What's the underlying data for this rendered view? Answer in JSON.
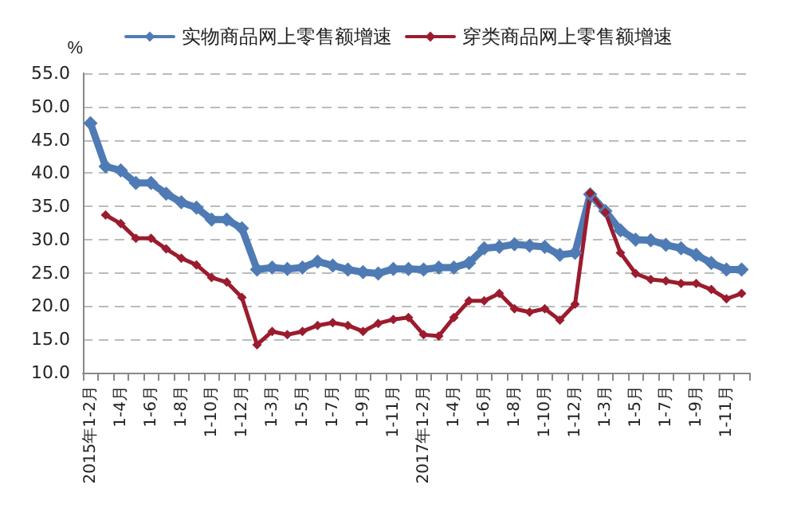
{
  "chart_data": {
    "type": "line",
    "ylabel": "%",
    "categories": [
      "2015年1-2月",
      null,
      "1-4月",
      null,
      "1-6月",
      null,
      "1-8月",
      null,
      "1-10月",
      null,
      "1-12月",
      null,
      "1-3月",
      null,
      "1-5月",
      null,
      "1-7月",
      null,
      "1-9月",
      null,
      "1-11月",
      null,
      "2017年1-2月",
      null,
      "1-4月",
      null,
      "1-6月",
      null,
      "1-8月",
      null,
      "1-10月",
      null,
      "1-12月",
      null,
      "1-3月",
      null,
      "1-5月",
      null,
      "1-7月",
      null,
      "1-9月",
      null,
      "1-11月",
      null
    ],
    "series": [
      {
        "name": "实物商品网上零售额增速",
        "color": "#4f7bb5",
        "values": [
          47.5,
          41.0,
          40.4,
          38.5,
          38.5,
          36.9,
          35.6,
          34.8,
          33.0,
          33.0,
          31.7,
          25.5,
          25.8,
          25.6,
          25.8,
          26.7,
          26.1,
          25.5,
          25.1,
          24.9,
          25.6,
          25.6,
          25.5,
          25.8,
          25.8,
          26.5,
          28.7,
          28.9,
          29.3,
          29.1,
          28.9,
          27.7,
          28.0,
          36.8,
          34.3,
          31.4,
          30.0,
          29.9,
          29.2,
          28.7,
          27.7,
          26.5,
          25.5,
          25.5
        ]
      },
      {
        "name": "穿类商品网上零售额增速",
        "color": "#9b1c2e",
        "values": [
          null,
          33.7,
          32.4,
          30.2,
          30.2,
          28.6,
          27.2,
          26.2,
          24.3,
          23.6,
          21.3,
          14.2,
          16.2,
          15.7,
          16.2,
          17.1,
          17.5,
          17.1,
          16.2,
          17.4,
          18.0,
          18.3,
          15.7,
          15.5,
          18.3,
          20.8,
          20.8,
          21.9,
          19.6,
          19.1,
          19.6,
          17.9,
          20.3,
          37.0,
          34.1,
          28.0,
          24.9,
          24.0,
          23.8,
          23.4,
          23.4,
          22.5,
          21.1,
          21.9
        ]
      }
    ],
    "ylim": [
      10,
      55
    ],
    "yticks": [
      {
        "value": 10,
        "label": "10.0"
      },
      {
        "value": 15,
        "label": "15.0"
      },
      {
        "value": 20,
        "label": "20.0"
      },
      {
        "value": 25,
        "label": "25.0"
      },
      {
        "value": 30,
        "label": "30.0"
      },
      {
        "value": 35,
        "label": "35.0"
      },
      {
        "value": 40,
        "label": "40.0"
      },
      {
        "value": 45,
        "label": "45.0"
      },
      {
        "value": 50,
        "label": "50.0"
      },
      {
        "value": 55,
        "label": "55.0"
      }
    ],
    "grid": "y",
    "legend": "top",
    "marker": "diamond",
    "line_style": "solid"
  }
}
